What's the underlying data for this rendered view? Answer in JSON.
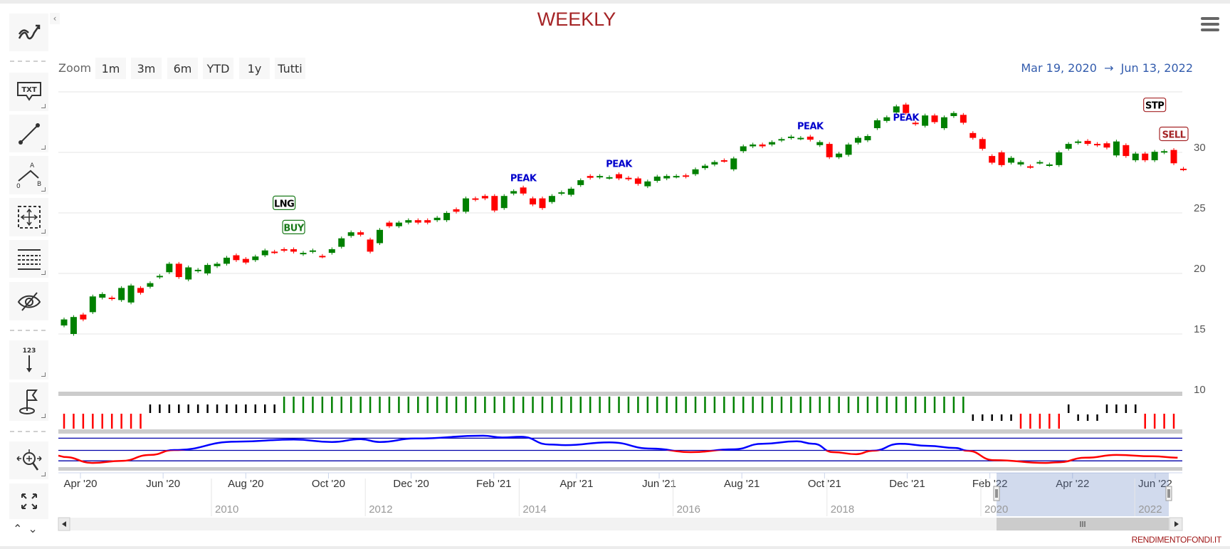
{
  "title": "WEEKLY",
  "zoom": {
    "label": "Zoom",
    "buttons": [
      "1m",
      "3m",
      "6m",
      "YTD",
      "1y",
      "Tutti"
    ]
  },
  "range": {
    "from": "Mar 19, 2020",
    "arrow": "→",
    "to": "Jun 13, 2022"
  },
  "toolbar": {
    "items": [
      "indicators",
      "text-annotation",
      "line",
      "elliott-abc",
      "measure",
      "fibonacci",
      "toggle-annotations",
      "vertical-counter",
      "flag",
      "zoom-change",
      "fullscreen"
    ],
    "txt_label": "TXT",
    "counter_label": "123",
    "abc_labels": [
      "A",
      "0",
      "B"
    ]
  },
  "footer": "RENDIMENTOFONDI.IT",
  "colors": {
    "up": "#008000",
    "down": "#ff0000",
    "title": "#a52426",
    "range": "#335cad",
    "osc_up": "#0000ff",
    "osc_down": "#ff0000",
    "flag_text": "#0000cc"
  },
  "chart_data": {
    "type": "candlestick",
    "period": "weekly",
    "y_axis": {
      "ticks": [
        10,
        15,
        20,
        25,
        30
      ],
      "range": [
        5,
        35
      ]
    },
    "x_axis_labels": [
      "Apr '20",
      "Jun '20",
      "Aug '20",
      "Oct '20",
      "Dec '20",
      "Feb '21",
      "Apr '21",
      "Jun '21",
      "Aug '21",
      "Oct '21",
      "Dec '21",
      "Feb '22",
      "Apr '22",
      "Jun '22"
    ],
    "navigator_years": [
      "2010",
      "2012",
      "2014",
      "2016",
      "2018",
      "2020",
      "2022"
    ],
    "navigator_selection": {
      "from": "Mar 19, 2020",
      "to": "Jun 13, 2022"
    },
    "candles_open_close": [
      [
        15.7,
        16.2
      ],
      [
        15.0,
        16.4
      ],
      [
        16.6,
        16.2
      ],
      [
        16.8,
        18.1
      ],
      [
        18.0,
        18.3
      ],
      [
        18.0,
        17.9
      ],
      [
        17.8,
        18.8
      ],
      [
        17.6,
        19.0
      ],
      [
        18.8,
        18.4
      ],
      [
        18.9,
        19.2
      ],
      [
        19.7,
        19.8
      ],
      [
        20.1,
        20.8
      ],
      [
        20.8,
        19.7
      ],
      [
        19.5,
        20.5
      ],
      [
        20.2,
        20.3
      ],
      [
        20.0,
        20.7
      ],
      [
        20.6,
        20.8
      ],
      [
        20.8,
        21.3
      ],
      [
        21.5,
        21.1
      ],
      [
        21.2,
        20.9
      ],
      [
        21.1,
        21.4
      ],
      [
        21.5,
        21.9
      ],
      [
        21.8,
        21.75
      ],
      [
        22.0,
        21.9
      ],
      [
        22.0,
        21.8
      ],
      [
        21.6,
        21.7
      ],
      [
        21.8,
        21.9
      ],
      [
        21.45,
        21.4
      ],
      [
        21.7,
        22.0
      ],
      [
        22.2,
        22.9
      ],
      [
        23.1,
        23.4
      ],
      [
        23.4,
        23.2
      ],
      [
        22.8,
        21.8
      ],
      [
        22.5,
        23.6
      ],
      [
        24.2,
        23.9
      ],
      [
        23.9,
        24.2
      ],
      [
        24.2,
        24.4
      ],
      [
        24.4,
        24.2
      ],
      [
        24.4,
        24.2
      ],
      [
        24.4,
        24.6
      ],
      [
        24.4,
        25.0
      ],
      [
        25.3,
        25.1
      ],
      [
        25.1,
        26.2
      ],
      [
        26.2,
        26.1
      ],
      [
        26.4,
        26.2
      ],
      [
        26.4,
        25.2
      ],
      [
        25.4,
        26.4
      ],
      [
        26.6,
        26.8
      ],
      [
        27.1,
        26.6
      ],
      [
        26.2,
        25.7
      ],
      [
        26.2,
        25.4
      ],
      [
        25.9,
        26.4
      ],
      [
        26.6,
        26.7
      ],
      [
        26.5,
        27.0
      ],
      [
        27.3,
        27.7
      ],
      [
        28.05,
        27.9
      ],
      [
        27.95,
        28.05
      ],
      [
        27.9,
        27.95
      ],
      [
        28.2,
        27.85
      ],
      [
        27.9,
        27.8
      ],
      [
        27.85,
        27.4
      ],
      [
        27.2,
        27.6
      ],
      [
        27.65,
        28.0
      ],
      [
        27.85,
        28.05
      ],
      [
        28.0,
        28.05
      ],
      [
        28.1,
        28.0
      ],
      [
        28.2,
        28.6
      ],
      [
        28.7,
        28.9
      ],
      [
        29.0,
        29.2
      ],
      [
        29.35,
        29.3
      ],
      [
        28.6,
        29.5
      ],
      [
        30.1,
        30.5
      ],
      [
        30.5,
        30.65
      ],
      [
        30.65,
        30.5
      ],
      [
        30.65,
        30.85
      ],
      [
        31.0,
        31.1
      ],
      [
        31.2,
        31.3
      ],
      [
        31.15,
        31.2
      ],
      [
        31.3,
        31.05
      ],
      [
        30.6,
        30.85
      ],
      [
        30.7,
        29.6
      ],
      [
        29.6,
        29.9
      ],
      [
        29.8,
        30.65
      ],
      [
        30.8,
        31.2
      ],
      [
        31.0,
        31.35
      ],
      [
        32.0,
        32.65
      ],
      [
        32.6,
        32.9
      ],
      [
        33.3,
        33.8
      ],
      [
        33.95,
        33.25
      ],
      [
        32.45,
        32.35
      ],
      [
        32.2,
        33.05
      ],
      [
        33.05,
        32.5
      ],
      [
        32.0,
        32.9
      ],
      [
        33.0,
        33.25
      ],
      [
        33.1,
        32.45
      ],
      [
        31.6,
        31.2
      ],
      [
        31.1,
        30.3
      ],
      [
        29.7,
        29.15
      ],
      [
        30.0,
        28.95
      ],
      [
        29.15,
        29.55
      ],
      [
        29.0,
        29.2
      ],
      [
        28.85,
        28.8
      ],
      [
        29.15,
        29.2
      ],
      [
        28.95,
        29.0
      ],
      [
        28.95,
        30.0
      ],
      [
        30.3,
        30.7
      ],
      [
        30.8,
        30.9
      ],
      [
        30.95,
        30.7
      ],
      [
        30.7,
        30.6
      ],
      [
        30.75,
        30.4
      ],
      [
        29.75,
        30.9
      ],
      [
        30.6,
        29.7
      ],
      [
        29.35,
        29.9
      ],
      [
        29.9,
        29.35
      ],
      [
        29.35,
        30.05
      ],
      [
        30.0,
        30.1
      ],
      [
        30.2,
        29.1
      ],
      [
        28.65,
        28.6
      ]
    ],
    "flags": [
      {
        "label": "LNG",
        "index": 23,
        "price": 25.8,
        "kind": "long"
      },
      {
        "label": "BUY",
        "index": 24,
        "price": 23.8,
        "kind": "buy"
      },
      {
        "label": "PEAK",
        "index": 48,
        "price": 27.9,
        "kind": "peak"
      },
      {
        "label": "PEAK",
        "index": 58,
        "price": 29.1,
        "kind": "peak"
      },
      {
        "label": "PEAK",
        "index": 78,
        "price": 32.2,
        "kind": "peak"
      },
      {
        "label": "PEAK",
        "index": 88,
        "price": 32.9,
        "kind": "peak"
      },
      {
        "label": "STP",
        "index": 114,
        "price": 33.9,
        "kind": "stop"
      },
      {
        "label": "SELL",
        "index": 116,
        "price": 31.5,
        "kind": "sell"
      }
    ],
    "signal_segments": [
      {
        "state": "sell",
        "count": 9
      },
      {
        "state": "neutral-high",
        "count": 14
      },
      {
        "state": "long",
        "count": 72
      },
      {
        "state": "neutral-low",
        "count": 5
      },
      {
        "state": "sell",
        "count": 5
      },
      {
        "state": "neutral-high",
        "count": 1
      },
      {
        "state": "neutral-low",
        "count": 3
      },
      {
        "state": "neutral-high",
        "count": 4
      },
      {
        "state": "sell",
        "count": 4
      }
    ],
    "oscillator": {
      "levels": [
        85,
        50,
        20
      ],
      "points": [
        [
          0,
          31
        ],
        [
          3,
          14
        ],
        [
          6,
          20
        ],
        [
          9,
          37
        ],
        [
          11.5,
          51
        ],
        [
          18,
          75
        ],
        [
          24,
          81
        ],
        [
          28,
          74
        ],
        [
          31,
          82
        ],
        [
          33,
          74
        ],
        [
          36.7,
          84
        ],
        [
          43.8,
          92
        ],
        [
          45.8,
          87
        ],
        [
          47.8,
          89
        ],
        [
          50.7,
          67
        ],
        [
          52.4,
          65
        ],
        [
          57,
          73
        ],
        [
          61.4,
          55
        ],
        [
          65.5,
          45
        ],
        [
          70,
          53
        ],
        [
          73,
          69
        ],
        [
          76.6,
          76
        ],
        [
          78.3,
          69
        ],
        [
          80.4,
          45
        ],
        [
          82.8,
          39
        ],
        [
          84.5,
          49
        ],
        [
          87.4,
          69
        ],
        [
          90.3,
          63
        ],
        [
          93.2,
          57
        ],
        [
          94.4,
          49
        ],
        [
          97.2,
          22
        ],
        [
          102.6,
          14
        ],
        [
          103.9,
          16
        ],
        [
          106.8,
          29
        ],
        [
          110,
          37
        ],
        [
          113.8,
          33
        ],
        [
          116.4,
          29
        ]
      ]
    }
  }
}
